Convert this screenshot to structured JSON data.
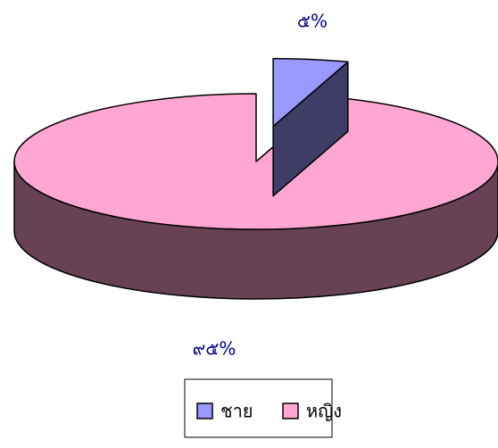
{
  "chart_data": {
    "type": "pie",
    "categories": [
      "ชาย",
      "หญิง"
    ],
    "values": [
      5,
      95
    ],
    "value_labels": [
      "๕%",
      "๙๕%"
    ],
    "colors": [
      "#9999ff",
      "#ffa6d2"
    ],
    "legend": "bottom"
  }
}
